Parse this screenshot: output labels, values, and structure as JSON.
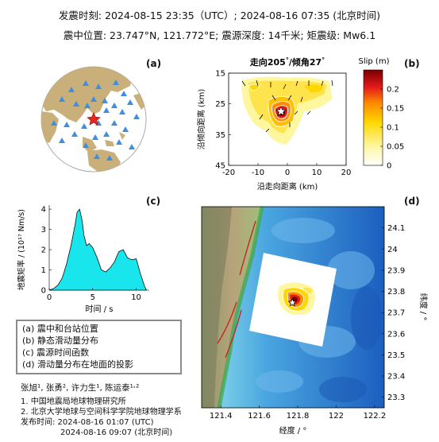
{
  "header": {
    "line1": "发震时刻: 2024-08-15 23:35（UTC）;   2024-08-16  07:35 (北京时间)",
    "line2": "震中位置: 23.747°N,  121.772°E;   震源深度: 14千米; 矩震级: Mw6.1"
  },
  "panels": {
    "a": {
      "label": "(a)"
    },
    "b": {
      "label": "(b)"
    },
    "c": {
      "label": "(c)"
    },
    "d": {
      "label": "(d)"
    }
  },
  "legend": {
    "items": [
      "(a) 震中和台站位置",
      "(b) 静态滑动量分布",
      "(c) 震源时间函数",
      "(d) 滑动量分布在地面的投影"
    ]
  },
  "credits": {
    "authors": "张旭¹, 张勇², 许力生¹, 陈运泰¹˒²",
    "affil1": "1. 中国地震局地球物理研究所",
    "affil2": "2. 北京大学地球与空间科学学院地球物理学系",
    "pub1": "发布时间:   2024-08-16  01:07 (UTC)",
    "pub2": "2024-08-16  09:07 (北京时间)"
  },
  "colors": {
    "ocean": "#ffffff",
    "land": "#c9b07a",
    "station": "#3f8fe0",
    "epicenter": "#e8281e",
    "stf_fill": "#19e6ec",
    "slip_max": "#7a0000",
    "slip_min": "#ffffff",
    "fault": "#c81e1e",
    "sea_shallow": "#8fe0ea",
    "sea_deep": "#1c5fbf"
  },
  "chart_data": [
    {
      "type": "map",
      "panel": "a",
      "description_symbols": [
        "blue triangles = stations",
        "red star = epicenter"
      ]
    },
    {
      "type": "heatmap",
      "panel": "b",
      "title": "走向205°/倾角27°",
      "title_strike": "走向205",
      "title_dip": "/倾角27",
      "deg": "°",
      "xlabel": "沿走向距离 (km)",
      "ylabel": "沿倾向距离 (km)",
      "xlim": [
        -20,
        20
      ],
      "ylim": [
        45,
        15
      ],
      "xticks": [
        "-20",
        "-10",
        "0",
        "10",
        "20"
      ],
      "yticks": [
        "15",
        "25",
        "35",
        "45"
      ],
      "colorbar_label": "Slip (m)",
      "colorbar_range": [
        0,
        0.25
      ],
      "colorbar_ticks": [
        "0.2",
        "0.15",
        "0.1",
        "0.05",
        "0"
      ],
      "colorbar_tick_values": [
        0.2,
        0.15,
        0.1,
        0.05,
        0
      ],
      "peak_slip": 0.24,
      "peak_location": [
        -2,
        29
      ]
    },
    {
      "type": "area",
      "panel": "c",
      "xlabel": "时间 / s",
      "ylabel": "地震矩率 / (10¹⁷ Nm/s)",
      "xlim": [
        0,
        11.5
      ],
      "ylim": [
        0,
        4.2
      ],
      "xticks": [
        "0",
        "5",
        "10"
      ],
      "yticks": [
        "0",
        "1",
        "2",
        "3",
        "4"
      ],
      "x": [
        0,
        0.5,
        1,
        1.5,
        2,
        2.5,
        3,
        3.2,
        3.5,
        3.8,
        4,
        4.3,
        4.6,
        5,
        5.5,
        6,
        6.5,
        7,
        7.5,
        8,
        8.5,
        9,
        9.5,
        10,
        10.5,
        11,
        11.2
      ],
      "y": [
        0,
        0.08,
        0.25,
        0.6,
        1.3,
        2.2,
        3.3,
        3.85,
        4.0,
        3.4,
        2.7,
        2.2,
        2.3,
        2.1,
        1.6,
        1.0,
        0.9,
        1.1,
        1.4,
        1.9,
        2.0,
        1.6,
        1.5,
        1.55,
        0.8,
        0.15,
        0
      ]
    },
    {
      "type": "map",
      "panel": "d",
      "xlabel": "经度 / °",
      "ylabel": "纬度 / °",
      "xlim": [
        121.3,
        122.25
      ],
      "ylim": [
        23.25,
        24.2
      ],
      "xticks": [
        "121.4",
        "121.6",
        "121.8",
        "122",
        "122.2"
      ],
      "yticks": [
        "24.1",
        "24",
        "23.9",
        "23.8",
        "23.7",
        "23.6",
        "23.5",
        "23.4",
        "23.3"
      ],
      "epicenter": [
        121.772,
        23.747
      ]
    }
  ]
}
